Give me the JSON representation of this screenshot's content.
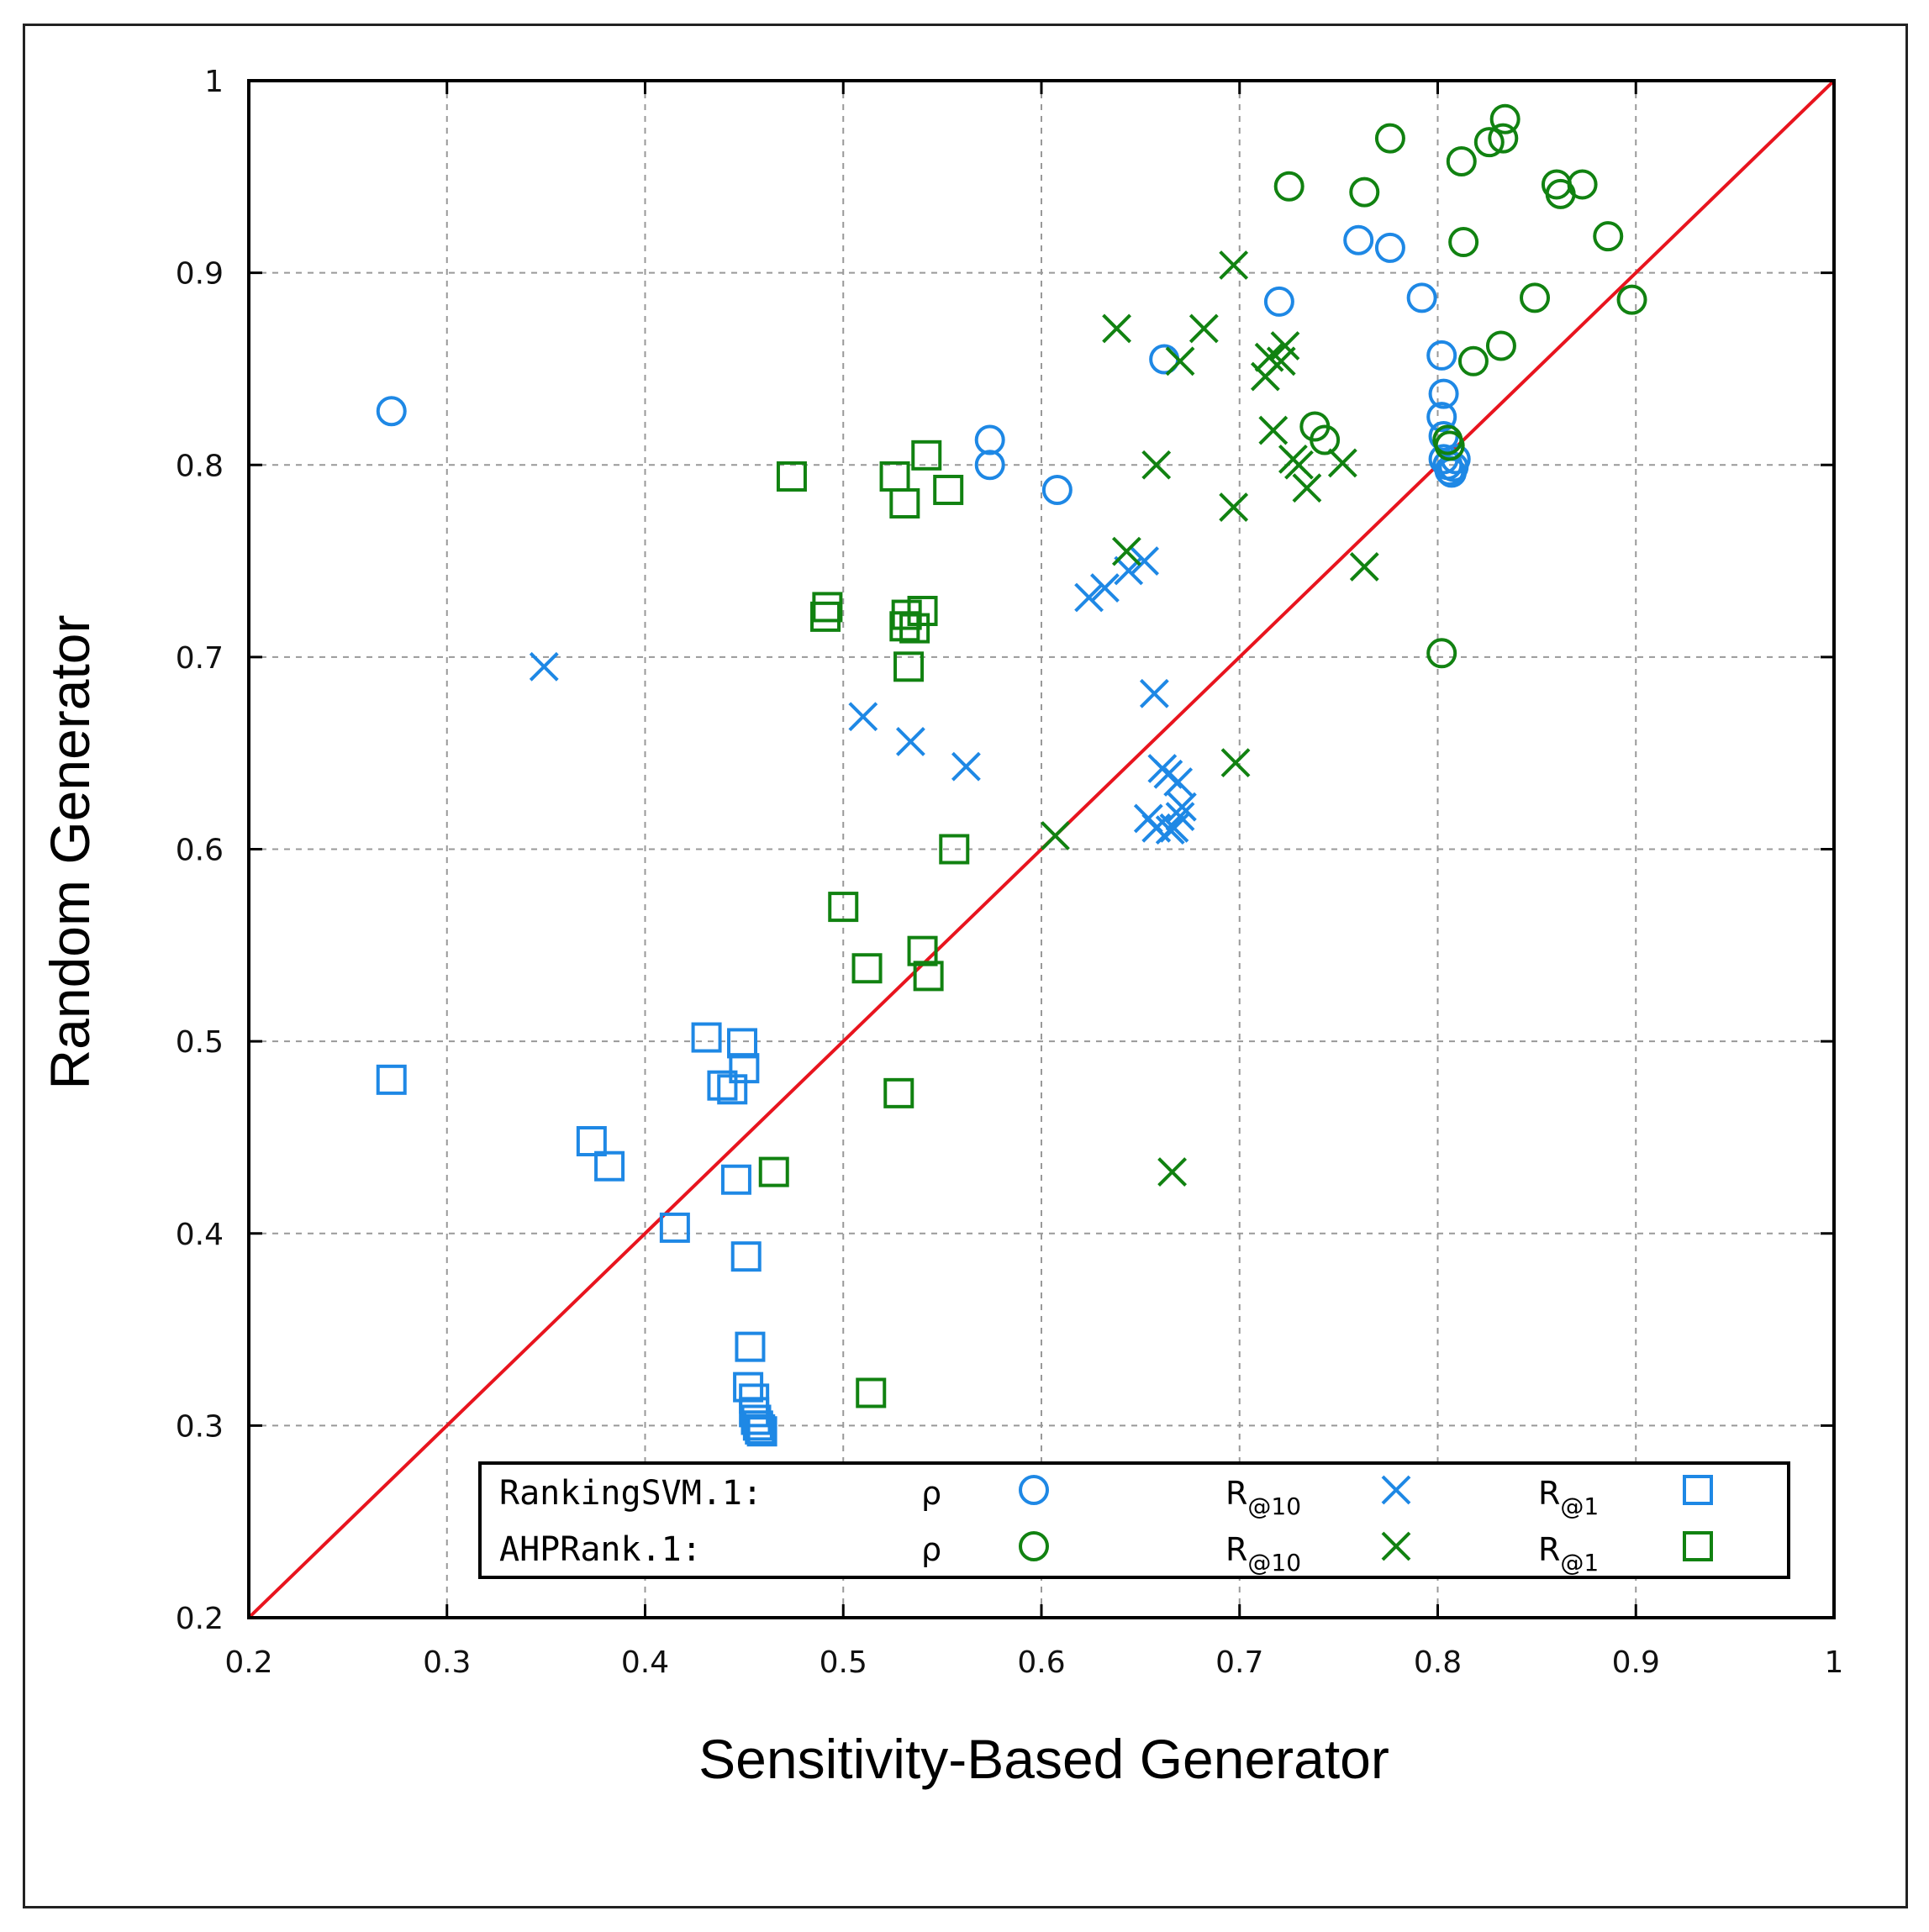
{
  "chart_data": {
    "type": "scatter",
    "title": "",
    "xlabel": "Sensitivity-Based Generator",
    "ylabel": "Random Generator",
    "xlim": [
      0.2,
      1
    ],
    "ylim": [
      0.2,
      1
    ],
    "xticks": [
      "0.2",
      "0.3",
      "0.4",
      "0.5",
      "0.6",
      "0.7",
      "0.8",
      "0.9",
      "1"
    ],
    "yticks": [
      "0.2",
      "0.3",
      "0.4",
      "0.5",
      "0.6",
      "0.7",
      "0.8",
      "0.9",
      "1"
    ],
    "grid": true,
    "reference_line": {
      "from": [
        0.2,
        0.2
      ],
      "to": [
        1,
        1
      ],
      "color": "#e8141e"
    },
    "colors": {
      "rankingsvm": "#1e88e5",
      "ahprank": "#118211"
    },
    "legend": {
      "position": "bottom-right",
      "rows": [
        {
          "method": "RankingSVM.1:",
          "rho": "ρ",
          "r10": "R",
          "r10_sub": "@10",
          "r1": "R",
          "r1_sub": "@1"
        },
        {
          "method": "AHPRank.1:",
          "rho": "ρ",
          "r10": "R",
          "r10_sub": "@10",
          "r1": "R",
          "r1_sub": "@1"
        }
      ]
    },
    "series": [
      {
        "name": "RankingSVM.1 ρ",
        "marker": "circle",
        "color": "#1e88e5",
        "points": [
          [
            0.272,
            0.828
          ],
          [
            0.574,
            0.813
          ],
          [
            0.574,
            0.8
          ],
          [
            0.608,
            0.787
          ],
          [
            0.662,
            0.855
          ],
          [
            0.72,
            0.885
          ],
          [
            0.76,
            0.917
          ],
          [
            0.776,
            0.913
          ],
          [
            0.792,
            0.887
          ],
          [
            0.802,
            0.857
          ],
          [
            0.803,
            0.837
          ],
          [
            0.802,
            0.825
          ],
          [
            0.803,
            0.815
          ],
          [
            0.803,
            0.803
          ],
          [
            0.805,
            0.8
          ],
          [
            0.806,
            0.797
          ],
          [
            0.807,
            0.796
          ],
          [
            0.808,
            0.799
          ],
          [
            0.809,
            0.803
          ]
        ]
      },
      {
        "name": "RankingSVM.1 R@10",
        "marker": "x",
        "color": "#1e88e5",
        "points": [
          [
            0.349,
            0.695
          ],
          [
            0.51,
            0.669
          ],
          [
            0.534,
            0.656
          ],
          [
            0.562,
            0.643
          ],
          [
            0.624,
            0.731
          ],
          [
            0.632,
            0.736
          ],
          [
            0.644,
            0.745
          ],
          [
            0.652,
            0.75
          ],
          [
            0.657,
            0.681
          ],
          [
            0.654,
            0.616
          ],
          [
            0.658,
            0.611
          ],
          [
            0.661,
            0.642
          ],
          [
            0.664,
            0.639
          ],
          [
            0.665,
            0.61
          ],
          [
            0.667,
            0.611
          ],
          [
            0.669,
            0.635
          ],
          [
            0.67,
            0.617
          ],
          [
            0.671,
            0.622
          ]
        ]
      },
      {
        "name": "RankingSVM.1 R@1",
        "marker": "square",
        "color": "#1e88e5",
        "points": [
          [
            0.272,
            0.48
          ],
          [
            0.373,
            0.448
          ],
          [
            0.382,
            0.435
          ],
          [
            0.415,
            0.403
          ],
          [
            0.431,
            0.502
          ],
          [
            0.439,
            0.477
          ],
          [
            0.444,
            0.475
          ],
          [
            0.446,
            0.428
          ],
          [
            0.449,
            0.499
          ],
          [
            0.45,
            0.486
          ],
          [
            0.451,
            0.388
          ],
          [
            0.453,
            0.341
          ],
          [
            0.452,
            0.32
          ],
          [
            0.455,
            0.314
          ],
          [
            0.455,
            0.307
          ],
          [
            0.456,
            0.303
          ],
          [
            0.457,
            0.3
          ],
          [
            0.458,
            0.298
          ],
          [
            0.459,
            0.297
          ]
        ]
      },
      {
        "name": "AHPRank.1 ρ",
        "marker": "circle",
        "color": "#118211",
        "points": [
          [
            0.725,
            0.945
          ],
          [
            0.738,
            0.82
          ],
          [
            0.743,
            0.813
          ],
          [
            0.763,
            0.942
          ],
          [
            0.776,
            0.97
          ],
          [
            0.802,
            0.702
          ],
          [
            0.805,
            0.813
          ],
          [
            0.806,
            0.81
          ],
          [
            0.812,
            0.958
          ],
          [
            0.813,
            0.916
          ],
          [
            0.818,
            0.854
          ],
          [
            0.826,
            0.968
          ],
          [
            0.833,
            0.97
          ],
          [
            0.834,
            0.98
          ],
          [
            0.832,
            0.862
          ],
          [
            0.849,
            0.887
          ],
          [
            0.86,
            0.946
          ],
          [
            0.862,
            0.941
          ],
          [
            0.873,
            0.946
          ],
          [
            0.886,
            0.919
          ],
          [
            0.898,
            0.886
          ]
        ]
      },
      {
        "name": "AHPRank.1 R@10",
        "marker": "x",
        "color": "#118211",
        "points": [
          [
            0.607,
            0.607
          ],
          [
            0.638,
            0.871
          ],
          [
            0.643,
            0.755
          ],
          [
            0.658,
            0.8
          ],
          [
            0.666,
            0.432
          ],
          [
            0.67,
            0.854
          ],
          [
            0.682,
            0.871
          ],
          [
            0.697,
            0.904
          ],
          [
            0.697,
            0.778
          ],
          [
            0.698,
            0.645
          ],
          [
            0.713,
            0.846
          ],
          [
            0.715,
            0.856
          ],
          [
            0.717,
            0.818
          ],
          [
            0.721,
            0.854
          ],
          [
            0.723,
            0.862
          ],
          [
            0.727,
            0.803
          ],
          [
            0.73,
            0.8
          ],
          [
            0.734,
            0.788
          ],
          [
            0.752,
            0.801
          ],
          [
            0.763,
            0.747
          ]
        ]
      },
      {
        "name": "AHPRank.1 R@1",
        "marker": "square",
        "color": "#118211",
        "points": [
          [
            0.474,
            0.794
          ],
          [
            0.465,
            0.432
          ],
          [
            0.491,
            0.721
          ],
          [
            0.492,
            0.726
          ],
          [
            0.5,
            0.57
          ],
          [
            0.512,
            0.538
          ],
          [
            0.514,
            0.317
          ],
          [
            0.526,
            0.794
          ],
          [
            0.528,
            0.473
          ],
          [
            0.531,
            0.78
          ],
          [
            0.531,
            0.716
          ],
          [
            0.532,
            0.722
          ],
          [
            0.533,
            0.695
          ],
          [
            0.536,
            0.715
          ],
          [
            0.54,
            0.724
          ],
          [
            0.54,
            0.547
          ],
          [
            0.542,
            0.805
          ],
          [
            0.543,
            0.534
          ],
          [
            0.553,
            0.787
          ],
          [
            0.556,
            0.6
          ]
        ]
      }
    ]
  }
}
